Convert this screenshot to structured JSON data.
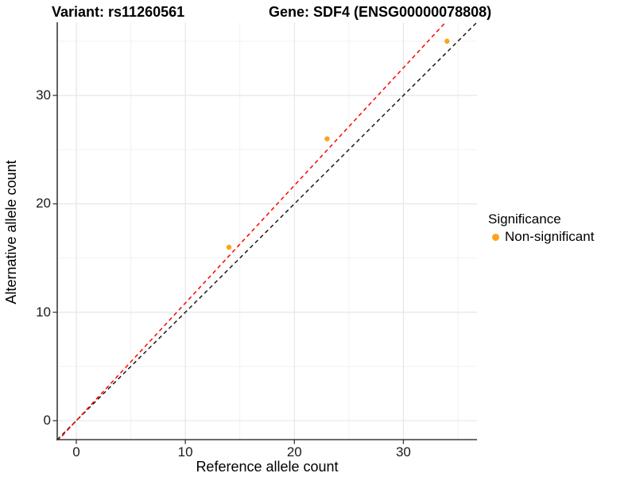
{
  "titles": {
    "variant": "Variant: rs11260561",
    "gene": "Gene: SDF4 (ENSG00000078808)"
  },
  "chart_data": {
    "type": "scatter",
    "xlabel": "Reference allele count",
    "ylabel": "Alternative allele count",
    "xlim": [
      -1.75,
      36.75
    ],
    "ylim": [
      -1.75,
      36.75
    ],
    "x_major_ticks": [
      0,
      10,
      20,
      30
    ],
    "y_major_ticks": [
      0,
      10,
      20,
      30
    ],
    "x_minor_ticks": [
      5,
      15,
      25,
      35
    ],
    "y_minor_ticks": [
      5,
      15,
      25,
      35
    ],
    "grid": "major+minor",
    "series": [
      {
        "name": "Non-significant",
        "color": "#FFA319",
        "points": [
          {
            "x": 14,
            "y": 16
          },
          {
            "x": 23,
            "y": 26
          },
          {
            "x": 34,
            "y": 35
          }
        ]
      }
    ],
    "lines": [
      {
        "name": "identity-line",
        "slope": 1.0,
        "intercept": 0,
        "color": "#1a1a1a",
        "style": "dashed"
      },
      {
        "name": "ratio-line",
        "slope": 1.085,
        "intercept": 0,
        "color": "#FF0000",
        "style": "dashed"
      }
    ],
    "legend": {
      "position": "right",
      "title": "Significance",
      "items": [
        {
          "label": "Non-significant",
          "color": "#FFA319"
        }
      ]
    },
    "colors": {
      "major_grid": "#E4E4E4",
      "minor_grid": "#F1F1F1",
      "axis_line": "#3a3a3a",
      "tick_mark": "#333333",
      "point": "#FFA319"
    }
  }
}
